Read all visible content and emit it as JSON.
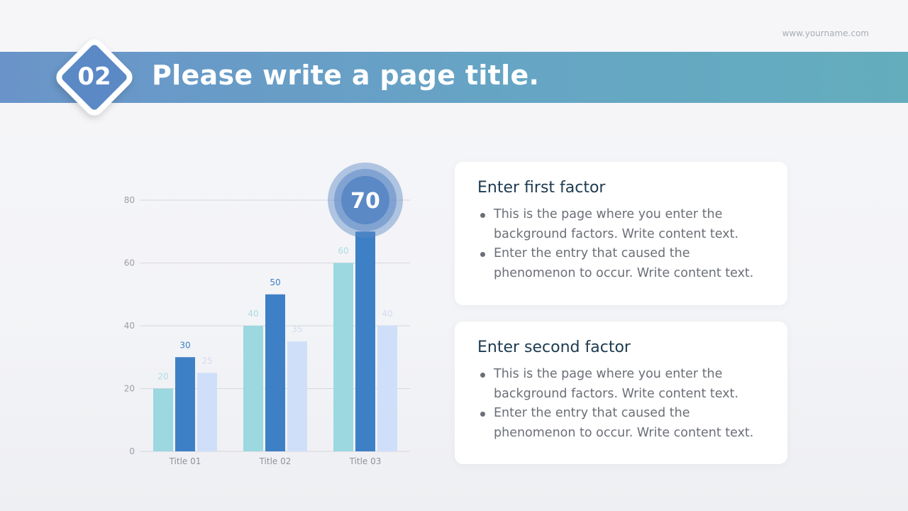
{
  "header": {
    "website": "www.yourname.com",
    "number": "02",
    "title": "Please write a page title."
  },
  "chart_data": {
    "type": "bar",
    "categories": [
      "Title 01",
      "Title 02",
      "Title 03"
    ],
    "series": [
      {
        "values": [
          20,
          40,
          60
        ],
        "color": "#9bd8e0"
      },
      {
        "values": [
          30,
          50,
          70
        ],
        "color": "#3e80c5"
      },
      {
        "values": [
          25,
          35,
          40
        ],
        "color": "#cfdffa"
      }
    ],
    "ylim": [
      0,
      80
    ],
    "yticks": [
      "0",
      "20",
      "40",
      "60",
      "80"
    ],
    "grid": true,
    "highlight": {
      "label": "70",
      "color": "#5b89c6"
    }
  },
  "cards": [
    {
      "heading": "Enter first factor",
      "bullets": [
        "This is the page where you enter the background factors. Write content text.",
        "Enter the entry that caused the phenomenon to occur. Write content text."
      ]
    },
    {
      "heading": "Enter second factor",
      "bullets": [
        "This is the page where you enter the background factors. Write content text.",
        "Enter the entry that caused the phenomenon to occur. Write content text."
      ]
    }
  ]
}
